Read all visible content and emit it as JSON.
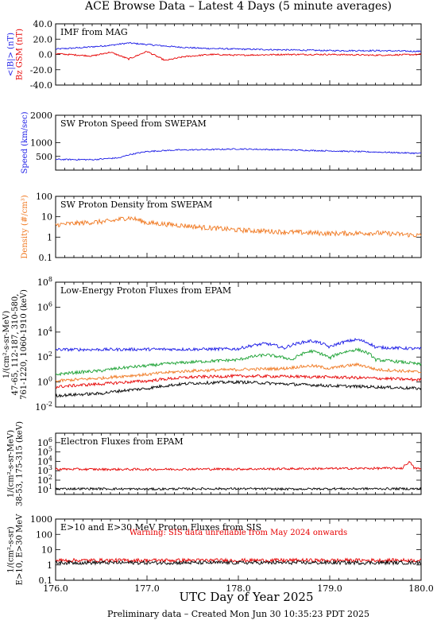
{
  "page": {
    "title": "ACE Browse Data – Latest 4 Days (5 minute averages)",
    "footer": "Preliminary data – Created Mon Jun 30 10:35:23 PDT 2025",
    "x_axis_label": "UTC Day of Year 2025",
    "x_ticks": [
      "176.0",
      "177.0",
      "178.0",
      "179.0",
      "180.0"
    ],
    "x_range": [
      176.0,
      180.0
    ]
  },
  "colors": {
    "blue": "#1a1ae6",
    "red": "#e60000",
    "orange": "#f07820",
    "green": "#18a030",
    "black": "#000000"
  },
  "chart_data": [
    {
      "id": "imf",
      "type": "line",
      "title": "IMF from MAG",
      "scale": "linear",
      "ylim": [
        -40,
        40
      ],
      "y_ticks": [
        "40.0",
        "20.0",
        "0.0",
        "-20.0",
        "-40.0"
      ],
      "ylabel_lines": [
        {
          "text": "<|B|> (nT)",
          "color": "blue"
        },
        {
          "text": "Bz GSM (nT)",
          "color": "red"
        }
      ],
      "series": [
        {
          "name": "<|B|>",
          "color": "blue",
          "points": [
            [
              176.0,
              7
            ],
            [
              176.3,
              9
            ],
            [
              176.6,
              12
            ],
            [
              176.8,
              15
            ],
            [
              177.0,
              13
            ],
            [
              177.3,
              10
            ],
            [
              177.6,
              8
            ],
            [
              178.0,
              7
            ],
            [
              178.5,
              6
            ],
            [
              179.0,
              5
            ],
            [
              179.5,
              5
            ],
            [
              180.0,
              4
            ]
          ]
        },
        {
          "name": "Bz GSM",
          "color": "red",
          "points": [
            [
              176.0,
              1
            ],
            [
              176.4,
              -2
            ],
            [
              176.6,
              3
            ],
            [
              176.8,
              -6
            ],
            [
              177.0,
              4
            ],
            [
              177.2,
              -8
            ],
            [
              177.4,
              -3
            ],
            [
              177.7,
              0
            ],
            [
              178.0,
              -1
            ],
            [
              178.5,
              0
            ],
            [
              179.0,
              0
            ],
            [
              179.5,
              -1
            ],
            [
              180.0,
              0
            ]
          ]
        }
      ]
    },
    {
      "id": "speed",
      "type": "line",
      "title": "SW Proton Speed from SWEPAM",
      "scale": "linear",
      "ylim": [
        0,
        2000
      ],
      "y_ticks": [
        "2000",
        "1000",
        "500"
      ],
      "ylabel_lines": [
        {
          "text": "Speed (km/sec)",
          "color": "blue"
        }
      ],
      "series": [
        {
          "name": "Speed",
          "color": "blue",
          "points": [
            [
              176.0,
              390
            ],
            [
              176.4,
              380
            ],
            [
              176.7,
              450
            ],
            [
              176.8,
              560
            ],
            [
              177.0,
              680
            ],
            [
              177.3,
              730
            ],
            [
              177.7,
              750
            ],
            [
              178.0,
              770
            ],
            [
              178.5,
              740
            ],
            [
              179.0,
              700
            ],
            [
              179.5,
              660
            ],
            [
              180.0,
              610
            ]
          ]
        }
      ]
    },
    {
      "id": "density",
      "type": "line",
      "title": "SW Proton Density from SWEPAM",
      "scale": "log",
      "ylim": [
        0.1,
        100
      ],
      "y_ticks": [
        "100",
        "10",
        "1",
        "0.1"
      ],
      "ylabel_lines": [
        {
          "text": "Density (#/cm³)",
          "color": "orange"
        }
      ],
      "series": [
        {
          "name": "Density",
          "color": "orange",
          "points": [
            [
              176.0,
              4
            ],
            [
              176.3,
              5
            ],
            [
              176.6,
              6
            ],
            [
              176.8,
              9
            ],
            [
              177.0,
              5
            ],
            [
              177.3,
              4
            ],
            [
              177.6,
              3
            ],
            [
              178.0,
              2.2
            ],
            [
              178.5,
              1.8
            ],
            [
              179.0,
              1.5
            ],
            [
              179.5,
              1.6
            ],
            [
              180.0,
              1.2
            ]
          ]
        }
      ]
    },
    {
      "id": "protons",
      "type": "line",
      "title": "Low-Energy Proton Fluxes from EPAM",
      "scale": "log",
      "ylim": [
        0.01,
        100000000
      ],
      "y_ticks": [
        "10^8",
        "10^6",
        "10^4",
        "10^2",
        "10^0",
        "10^-2"
      ],
      "ylabel_lines": [
        {
          "text": "1/(cm²-s-sr-MeV)",
          "color": "black"
        },
        {
          "text": "47-65,  112-187,  310-580,",
          "color": "mixed"
        },
        {
          "text": "761-1220, 1060-1910 (keV)",
          "color": "mixed"
        }
      ],
      "series": [
        {
          "name": "47-65",
          "color": "blue",
          "points": [
            [
              176.0,
              400
            ],
            [
              176.5,
              400
            ],
            [
              177.0,
              420
            ],
            [
              177.5,
              420
            ],
            [
              178.0,
              450
            ],
            [
              178.3,
              1200
            ],
            [
              178.5,
              500
            ],
            [
              178.8,
              2000
            ],
            [
              179.0,
              600
            ],
            [
              179.3,
              2500
            ],
            [
              179.5,
              600
            ],
            [
              180.0,
              450
            ]
          ]
        },
        {
          "name": "112-187",
          "color": "green",
          "points": [
            [
              176.0,
              4
            ],
            [
              176.5,
              8
            ],
            [
              177.0,
              20
            ],
            [
              177.5,
              40
            ],
            [
              178.0,
              60
            ],
            [
              178.3,
              150
            ],
            [
              178.6,
              60
            ],
            [
              178.8,
              300
            ],
            [
              179.0,
              80
            ],
            [
              179.3,
              400
            ],
            [
              179.5,
              60
            ],
            [
              180.0,
              25
            ]
          ]
        },
        {
          "name": "310-580",
          "color": "orange",
          "points": [
            [
              176.0,
              1.2
            ],
            [
              176.5,
              2
            ],
            [
              177.0,
              4
            ],
            [
              177.5,
              8
            ],
            [
              178.0,
              10
            ],
            [
              178.5,
              12
            ],
            [
              178.8,
              20
            ],
            [
              179.0,
              12
            ],
            [
              179.3,
              25
            ],
            [
              179.5,
              10
            ],
            [
              180.0,
              6
            ]
          ]
        },
        {
          "name": "761-1220",
          "color": "red",
          "points": [
            [
              176.0,
              0.4
            ],
            [
              176.5,
              0.7
            ],
            [
              177.0,
              1.2
            ],
            [
              177.5,
              2.5
            ],
            [
              178.0,
              3
            ],
            [
              178.5,
              2.8
            ],
            [
              179.0,
              2.5
            ],
            [
              179.5,
              2
            ],
            [
              180.0,
              1.5
            ]
          ]
        },
        {
          "name": "1060-1910",
          "color": "black",
          "points": [
            [
              176.0,
              0.08
            ],
            [
              176.5,
              0.12
            ],
            [
              177.0,
              0.3
            ],
            [
              177.5,
              0.8
            ],
            [
              178.0,
              1
            ],
            [
              178.5,
              0.7
            ],
            [
              179.0,
              0.5
            ],
            [
              179.5,
              0.4
            ],
            [
              180.0,
              0.3
            ]
          ]
        }
      ]
    },
    {
      "id": "electrons",
      "type": "line",
      "title": "Electron Fluxes from EPAM",
      "scale": "log",
      "ylim": [
        3,
        10000000
      ],
      "y_ticks": [
        "10^6",
        "10^5",
        "10^4",
        "10^3",
        "10^2",
        "10^1"
      ],
      "ylabel_lines": [
        {
          "text": "1/(cm²-s-sr-MeV)",
          "color": "black"
        },
        {
          "text": "38-53,  175-315 (keV)",
          "color": "mixed"
        }
      ],
      "series": [
        {
          "name": "38-53",
          "color": "red",
          "points": [
            [
              176.0,
              1500
            ],
            [
              176.5,
              1400
            ],
            [
              177.0,
              1400
            ],
            [
              177.5,
              1500
            ],
            [
              178.0,
              1500
            ],
            [
              178.5,
              1600
            ],
            [
              179.0,
              1700
            ],
            [
              179.5,
              1800
            ],
            [
              179.8,
              1900
            ],
            [
              179.87,
              8000
            ],
            [
              179.92,
              2000
            ],
            [
              180.0,
              1500
            ]
          ]
        },
        {
          "name": "175-315",
          "color": "black",
          "points": [
            [
              176.0,
              12
            ],
            [
              176.5,
              12
            ],
            [
              177.0,
              11
            ],
            [
              177.5,
              12
            ],
            [
              178.0,
              12
            ],
            [
              178.5,
              11
            ],
            [
              179.0,
              12
            ],
            [
              179.5,
              12
            ],
            [
              180.0,
              12
            ]
          ]
        }
      ]
    },
    {
      "id": "sis",
      "type": "line",
      "title": "E>10 and E>30 MeV Proton Fluxes from SIS",
      "scale": "log",
      "ylim": [
        0.1,
        1000
      ],
      "y_ticks": [
        "1000",
        "100",
        "10",
        "1",
        "0.1"
      ],
      "annotation": "Warning: SIS data unreliable from May 2024 onwards",
      "ylabel_lines": [
        {
          "text": "1/(cm²-s-sr)",
          "color": "black"
        },
        {
          "text": "E>10, E>30 MeV",
          "color": "mixed"
        }
      ],
      "series": [
        {
          "name": "E>10",
          "color": "red",
          "points": [
            [
              176.0,
              2.0
            ],
            [
              177.0,
              2.0
            ],
            [
              178.0,
              2.0
            ],
            [
              179.0,
              2.0
            ],
            [
              180.0,
              2.0
            ]
          ]
        },
        {
          "name": "E>30",
          "color": "black",
          "points": [
            [
              176.0,
              1.4
            ],
            [
              177.0,
              1.4
            ],
            [
              178.0,
              1.4
            ],
            [
              179.0,
              1.4
            ],
            [
              180.0,
              1.4
            ]
          ]
        }
      ]
    }
  ]
}
